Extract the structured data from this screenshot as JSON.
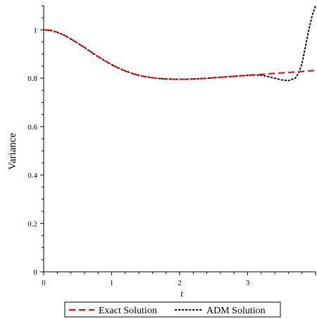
{
  "chart_data": {
    "type": "line",
    "title": "",
    "xlabel": "t",
    "ylabel": "Variance",
    "xlim": [
      0,
      4
    ],
    "ylim": [
      0,
      1.1
    ],
    "xticks": [
      0,
      1,
      2,
      3
    ],
    "xtick_labels": [
      "0",
      "1",
      "2",
      "3"
    ],
    "yticks": [
      0,
      0.2,
      0.4,
      0.6,
      0.8,
      1
    ],
    "ytick_labels": [
      "0",
      "0.2",
      "0.4",
      "0.6",
      "0.8",
      "1"
    ],
    "grid": false,
    "legend_position": "bottom",
    "series": [
      {
        "name": "Exact Solution",
        "color": "#e00000",
        "style": "dashed",
        "x": [
          0,
          0.1,
          0.2,
          0.3,
          0.4,
          0.5,
          0.6,
          0.7,
          0.8,
          0.9,
          1.0,
          1.1,
          1.2,
          1.3,
          1.4,
          1.5,
          1.6,
          1.7,
          1.8,
          1.9,
          2.0,
          2.1,
          2.2,
          2.3,
          2.4,
          2.5,
          2.6,
          2.7,
          2.8,
          2.9,
          3.0,
          3.1,
          3.2,
          3.3,
          3.4,
          3.5,
          3.6,
          3.7,
          3.8,
          3.9,
          4.0
        ],
        "y": [
          1.0,
          0.998,
          0.99,
          0.978,
          0.962,
          0.945,
          0.927,
          0.908,
          0.889,
          0.872,
          0.856,
          0.842,
          0.83,
          0.82,
          0.812,
          0.806,
          0.802,
          0.799,
          0.797,
          0.796,
          0.796,
          0.796,
          0.797,
          0.798,
          0.8,
          0.802,
          0.804,
          0.806,
          0.808,
          0.81,
          0.812,
          0.814,
          0.816,
          0.818,
          0.82,
          0.822,
          0.824,
          0.826,
          0.828,
          0.83,
          0.832
        ]
      },
      {
        "name": "ADM Solution",
        "color": "#000000",
        "style": "dotted",
        "x": [
          0,
          0.1,
          0.2,
          0.3,
          0.4,
          0.5,
          0.6,
          0.7,
          0.8,
          0.9,
          1.0,
          1.1,
          1.2,
          1.3,
          1.4,
          1.5,
          1.6,
          1.7,
          1.8,
          1.9,
          2.0,
          2.1,
          2.2,
          2.3,
          2.4,
          2.5,
          2.6,
          2.7,
          2.8,
          2.9,
          3.0,
          3.1,
          3.2,
          3.3,
          3.4,
          3.5,
          3.6,
          3.7,
          3.75,
          3.8,
          3.85,
          3.9,
          3.95,
          4.0
        ],
        "y": [
          1.0,
          0.998,
          0.99,
          0.978,
          0.962,
          0.945,
          0.927,
          0.908,
          0.889,
          0.872,
          0.856,
          0.842,
          0.83,
          0.82,
          0.812,
          0.806,
          0.802,
          0.799,
          0.797,
          0.796,
          0.796,
          0.796,
          0.797,
          0.798,
          0.8,
          0.802,
          0.804,
          0.806,
          0.808,
          0.81,
          0.812,
          0.813,
          0.812,
          0.807,
          0.8,
          0.793,
          0.79,
          0.8,
          0.82,
          0.86,
          0.93,
          1.0,
          1.06,
          1.1
        ]
      }
    ]
  }
}
